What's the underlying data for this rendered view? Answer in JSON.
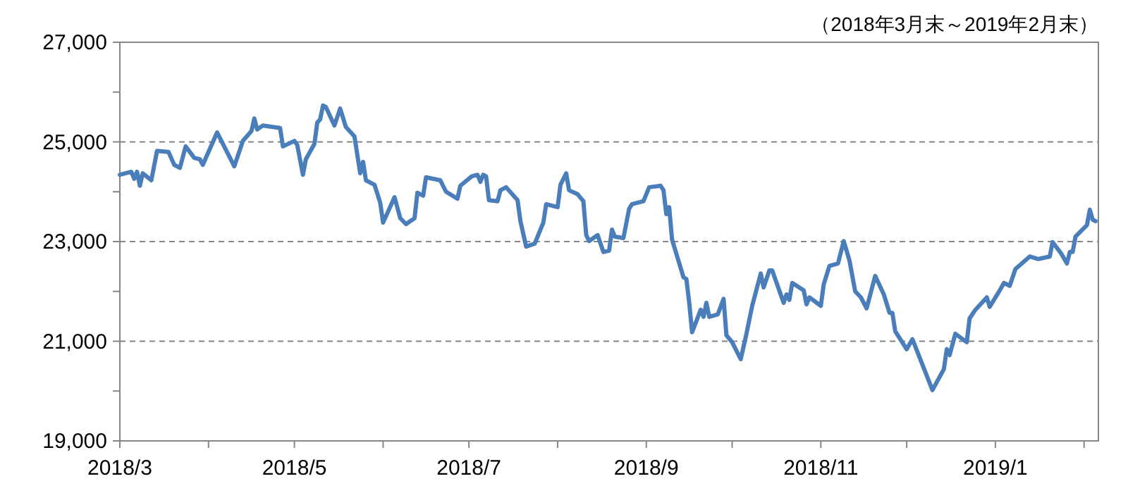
{
  "chart_data": {
    "type": "line",
    "annotations": [
      "（2018年3月末～2019年2月末）"
    ],
    "x": [
      "2018-03-01",
      "2018-03-05",
      "2018-03-06",
      "2018-03-07",
      "2018-03-08",
      "2018-03-09",
      "2018-03-12",
      "2018-03-14",
      "2018-03-18",
      "2018-03-20",
      "2018-03-22",
      "2018-03-24",
      "2018-03-27",
      "2018-03-29",
      "2018-03-30",
      "2018-04-04",
      "2018-04-10",
      "2018-04-13",
      "2018-04-16",
      "2018-04-17",
      "2018-04-18",
      "2018-04-20",
      "2018-04-26",
      "2018-04-27",
      "2018-05-01",
      "2018-05-02",
      "2018-05-04",
      "2018-05-05",
      "2018-05-08",
      "2018-05-09",
      "2018-05-10",
      "2018-05-11",
      "2018-05-12",
      "2018-05-15",
      "2018-05-17",
      "2018-05-19",
      "2018-05-22",
      "2018-05-24",
      "2018-05-25",
      "2018-05-26",
      "2018-05-29",
      "2018-05-31",
      "2018-06-01",
      "2018-06-05",
      "2018-06-07",
      "2018-06-09",
      "2018-06-12",
      "2018-06-13",
      "2018-06-15",
      "2018-06-16",
      "2018-06-21",
      "2018-06-23",
      "2018-06-27",
      "2018-06-28",
      "2018-07-02",
      "2018-07-04",
      "2018-07-05",
      "2018-07-06",
      "2018-07-07",
      "2018-07-08",
      "2018-07-11",
      "2018-07-12",
      "2018-07-14",
      "2018-07-18",
      "2018-07-19",
      "2018-07-21",
      "2018-07-24",
      "2018-07-27",
      "2018-07-28",
      "2018-08-01",
      "2018-08-02",
      "2018-08-04",
      "2018-08-05",
      "2018-08-08",
      "2018-08-10",
      "2018-08-11",
      "2018-08-12",
      "2018-08-15",
      "2018-08-17",
      "2018-08-19",
      "2018-08-20",
      "2018-08-21",
      "2018-08-24",
      "2018-08-26",
      "2018-08-27",
      "2018-08-31",
      "2018-09-02",
      "2018-09-06",
      "2018-09-07",
      "2018-09-08",
      "2018-09-09",
      "2018-09-10",
      "2018-09-14",
      "2018-09-15",
      "2018-09-16",
      "2018-09-17",
      "2018-09-20",
      "2018-09-21",
      "2018-09-22",
      "2018-09-23",
      "2018-09-26",
      "2018-09-28",
      "2018-09-29",
      "2018-10-01",
      "2018-10-04",
      "2018-10-06",
      "2018-10-08",
      "2018-10-11",
      "2018-10-12",
      "2018-10-14",
      "2018-10-15",
      "2018-10-19",
      "2018-10-20",
      "2018-10-21",
      "2018-10-22",
      "2018-10-26",
      "2018-10-27",
      "2018-10-28",
      "2018-11-01",
      "2018-11-02",
      "2018-11-04",
      "2018-11-07",
      "2018-11-09",
      "2018-11-11",
      "2018-11-13",
      "2018-11-15",
      "2018-11-17",
      "2018-11-20",
      "2018-11-23",
      "2018-11-25",
      "2018-11-26",
      "2018-11-27",
      "2018-12-01",
      "2018-12-03",
      "2018-12-10",
      "2018-12-14",
      "2018-12-15",
      "2018-12-16",
      "2018-12-18",
      "2018-12-22",
      "2018-12-23",
      "2018-12-25",
      "2018-12-29",
      "2018-12-30",
      "2019-01-02",
      "2019-01-04",
      "2019-01-06",
      "2019-01-08",
      "2019-01-13",
      "2019-01-16",
      "2019-01-20",
      "2019-01-21",
      "2019-01-24",
      "2019-01-26",
      "2019-01-27",
      "2019-01-28",
      "2019-01-29",
      "2019-02-02",
      "2019-02-03",
      "2019-02-04",
      "2019-02-05"
    ],
    "series": [
      {
        "color": "#4a7ebb",
        "values": [
          24340,
          24400,
          24260,
          24400,
          24120,
          24370,
          24230,
          24820,
          24800,
          24540,
          24480,
          24910,
          24680,
          24650,
          24540,
          25190,
          24510,
          25020,
          25220,
          25470,
          25250,
          25330,
          25280,
          24910,
          25020,
          24940,
          24340,
          24650,
          24960,
          25390,
          25450,
          25730,
          25700,
          25330,
          25670,
          25300,
          25110,
          24370,
          24600,
          24230,
          24140,
          23780,
          23380,
          23890,
          23470,
          23350,
          23470,
          23980,
          23920,
          24290,
          24230,
          24000,
          23860,
          24120,
          24310,
          24340,
          24200,
          24340,
          24310,
          23830,
          23810,
          24030,
          24090,
          23830,
          23410,
          22900,
          22960,
          23380,
          23750,
          23690,
          24140,
          24370,
          24030,
          23950,
          23810,
          23130,
          23010,
          23130,
          22790,
          22820,
          23240,
          23100,
          23070,
          23660,
          23750,
          23810,
          24090,
          24120,
          24030,
          23550,
          23690,
          23040,
          22280,
          22250,
          21770,
          21180,
          21630,
          21490,
          21770,
          21490,
          21540,
          21850,
          21120,
          20980,
          20640,
          21150,
          21710,
          22360,
          22080,
          22420,
          22420,
          21770,
          21940,
          21830,
          22170,
          22020,
          21740,
          21880,
          21710,
          22140,
          22510,
          22560,
          23010,
          22620,
          22000,
          21880,
          21660,
          22310,
          21940,
          21570,
          21570,
          21200,
          20840,
          21040,
          20020,
          20440,
          20840,
          20720,
          21150,
          20980,
          21460,
          21630,
          21880,
          21690,
          21970,
          22170,
          22110,
          22450,
          22700,
          22650,
          22700,
          22990,
          22760,
          22560,
          22790,
          22790,
          23100,
          23330,
          23640,
          23440,
          23410
        ]
      }
    ],
    "marker": "none",
    "line_style": "solid",
    "grid": "y",
    "xlim": [
      "2018-03-01",
      "2019-02-06"
    ],
    "xticks": [
      {
        "value": "2018-03-01",
        "label": "2018/3"
      },
      {
        "value": "2018-04-01",
        "label": null
      },
      {
        "value": "2018-05-01",
        "label": "2018/5"
      },
      {
        "value": "2018-06-01",
        "label": null
      },
      {
        "value": "2018-07-01",
        "label": "2018/7"
      },
      {
        "value": "2018-08-01",
        "label": null
      },
      {
        "value": "2018-09-01",
        "label": "2018/9"
      },
      {
        "value": "2018-10-01",
        "label": null
      },
      {
        "value": "2018-11-01",
        "label": "2018/11"
      },
      {
        "value": "2018-12-01",
        "label": null
      },
      {
        "value": "2019-01-01",
        "label": "2019/1"
      },
      {
        "value": "2019-02-01",
        "label": null
      }
    ],
    "ylim": [
      19000,
      27000
    ],
    "yticks": [
      {
        "value": 19000,
        "label": "19,000"
      },
      {
        "value": 20000,
        "label": null
      },
      {
        "value": 21000,
        "label": "21,000"
      },
      {
        "value": 22000,
        "label": null
      },
      {
        "value": 23000,
        "label": "23,000"
      },
      {
        "value": 24000,
        "label": null
      },
      {
        "value": 25000,
        "label": "25,000"
      },
      {
        "value": 26000,
        "label": null
      },
      {
        "value": 27000,
        "label": "27,000"
      }
    ]
  }
}
